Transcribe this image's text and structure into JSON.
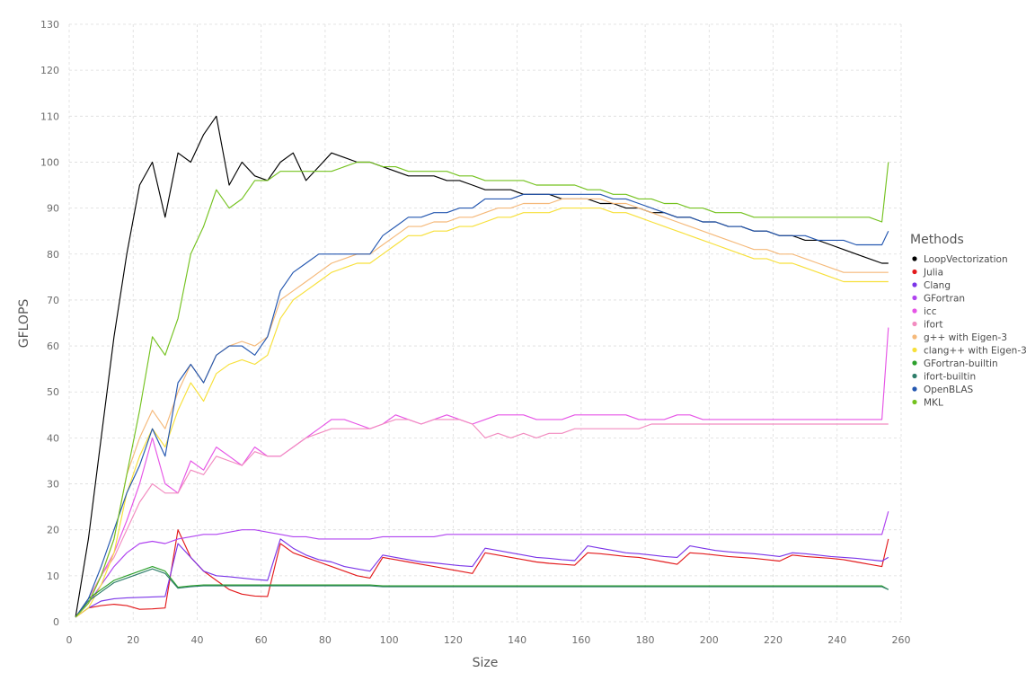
{
  "chart_data": {
    "type": "line",
    "title": "",
    "xlabel": "Size",
    "ylabel": "GFLOPS",
    "xlim": [
      0,
      260
    ],
    "ylim": [
      0,
      130
    ],
    "x_ticks": [
      0,
      20,
      40,
      60,
      80,
      100,
      120,
      140,
      160,
      180,
      200,
      220,
      240,
      260
    ],
    "y_ticks": [
      0,
      10,
      20,
      30,
      40,
      50,
      60,
      70,
      80,
      90,
      100,
      110,
      120,
      130
    ],
    "grid": true,
    "legend_title": "Methods",
    "legend_position": "right",
    "x": [
      2,
      6,
      10,
      14,
      18,
      22,
      26,
      30,
      34,
      38,
      42,
      46,
      50,
      54,
      58,
      62,
      66,
      70,
      74,
      78,
      82,
      86,
      90,
      94,
      98,
      102,
      106,
      110,
      114,
      118,
      122,
      126,
      130,
      134,
      138,
      142,
      146,
      150,
      154,
      158,
      162,
      166,
      170,
      174,
      178,
      182,
      186,
      190,
      194,
      198,
      202,
      206,
      210,
      214,
      218,
      222,
      226,
      230,
      234,
      238,
      242,
      246,
      250,
      254,
      256
    ],
    "series": [
      {
        "name": "LoopVectorization",
        "color": "#000000",
        "values": [
          1,
          18,
          40,
          62,
          80,
          95,
          100,
          88,
          102,
          100,
          106,
          110,
          95,
          100,
          97,
          96,
          100,
          102,
          96,
          99,
          102,
          101,
          100,
          100,
          99,
          98,
          97,
          97,
          97,
          96,
          96,
          95,
          94,
          94,
          94,
          93,
          93,
          93,
          92,
          92,
          92,
          91,
          91,
          90,
          90,
          89,
          89,
          88,
          88,
          87,
          87,
          86,
          86,
          85,
          85,
          84,
          84,
          83,
          83,
          82,
          81,
          80,
          79,
          78,
          78
        ]
      },
      {
        "name": "Julia",
        "color": "#e31a1c",
        "values": [
          1,
          3,
          3.5,
          3.8,
          3.5,
          2.7,
          2.8,
          3,
          20,
          14,
          11,
          9,
          7,
          6,
          5.6,
          5.5,
          17,
          15,
          14,
          13,
          12,
          11,
          10,
          9.5,
          14,
          13.5,
          13,
          12.5,
          12,
          11.5,
          11,
          10.5,
          15,
          14.5,
          14,
          13.5,
          13,
          12.7,
          12.5,
          12.3,
          15,
          14.8,
          14.5,
          14.2,
          14,
          13.5,
          13,
          12.5,
          15,
          14.8,
          14.5,
          14.2,
          14,
          13.8,
          13.5,
          13.2,
          14.5,
          14.2,
          14,
          13.8,
          13.5,
          13,
          12.5,
          12,
          18
        ]
      },
      {
        "name": "Clang",
        "color": "#7b35e8",
        "values": [
          1,
          3,
          4.5,
          5,
          5.2,
          5.3,
          5.4,
          5.5,
          17,
          14,
          11,
          10,
          9.8,
          9.5,
          9.2,
          9,
          18,
          16,
          14.5,
          13.5,
          13,
          12,
          11.5,
          11,
          14.5,
          14,
          13.5,
          13,
          12.8,
          12.5,
          12.2,
          12,
          16,
          15.5,
          15,
          14.5,
          14,
          13.8,
          13.5,
          13.3,
          16.5,
          16,
          15.5,
          15,
          14.8,
          14.5,
          14.2,
          14,
          16.5,
          16,
          15.5,
          15.2,
          15,
          14.8,
          14.5,
          14.2,
          15,
          14.8,
          14.5,
          14.2,
          14,
          13.8,
          13.5,
          13.2,
          14
        ]
      },
      {
        "name": "GFortran",
        "color": "#b044f0",
        "values": [
          1,
          4,
          8,
          12,
          15,
          17,
          17.5,
          17,
          18,
          18.5,
          19,
          19,
          19.5,
          20,
          20,
          19.5,
          19,
          18.5,
          18.5,
          18,
          18,
          18,
          18,
          18,
          18.5,
          18.5,
          18.5,
          18.5,
          18.5,
          19,
          19,
          19,
          19,
          19,
          19,
          19,
          19,
          19,
          19,
          19,
          19,
          19,
          19,
          19,
          19,
          19,
          19,
          19,
          19,
          19,
          19,
          19,
          19,
          19,
          19,
          19,
          19,
          19,
          19,
          19,
          19,
          19,
          19,
          19,
          24
        ]
      },
      {
        "name": "icc",
        "color": "#e655e6",
        "values": [
          1,
          5,
          10,
          15,
          22,
          30,
          40,
          30,
          28,
          35,
          33,
          38,
          36,
          34,
          38,
          36,
          36,
          38,
          40,
          42,
          44,
          44,
          43,
          42,
          43,
          45,
          44,
          43,
          44,
          45,
          44,
          43,
          44,
          45,
          45,
          45,
          44,
          44,
          44,
          45,
          45,
          45,
          45,
          45,
          44,
          44,
          44,
          45,
          45,
          44,
          44,
          44,
          44,
          44,
          44,
          44,
          44,
          44,
          44,
          44,
          44,
          44,
          44,
          44,
          64
        ]
      },
      {
        "name": "ifort",
        "color": "#f28cc0",
        "values": [
          1,
          5,
          10,
          14,
          20,
          26,
          30,
          28,
          28,
          33,
          32,
          36,
          35,
          34,
          37,
          36,
          36,
          38,
          40,
          41,
          42,
          42,
          42,
          42,
          43,
          44,
          44,
          43,
          44,
          44,
          44,
          43,
          40,
          41,
          40,
          41,
          40,
          41,
          41,
          42,
          42,
          42,
          42,
          42,
          42,
          43,
          43,
          43,
          43,
          43,
          43,
          43,
          43,
          43,
          43,
          43,
          43,
          43,
          43,
          43,
          43,
          43,
          43,
          43,
          43
        ]
      },
      {
        "name": "g++ with Eigen-3",
        "color": "#f5b97a",
        "values": [
          1,
          4,
          10,
          18,
          32,
          40,
          46,
          42,
          50,
          56,
          52,
          58,
          60,
          61,
          60,
          62,
          70,
          72,
          74,
          76,
          78,
          79,
          80,
          80,
          82,
          84,
          86,
          86,
          87,
          87,
          88,
          88,
          89,
          90,
          90,
          91,
          91,
          91,
          92,
          92,
          92,
          92,
          91,
          91,
          90,
          89,
          88,
          87,
          86,
          85,
          84,
          83,
          82,
          81,
          81,
          80,
          80,
          79,
          78,
          77,
          76,
          76,
          76,
          76,
          76
        ]
      },
      {
        "name": "clang++ with Eigen-3",
        "color": "#f7e03a",
        "values": [
          1,
          3,
          8,
          15,
          28,
          36,
          42,
          38,
          46,
          52,
          48,
          54,
          56,
          57,
          56,
          58,
          66,
          70,
          72,
          74,
          76,
          77,
          78,
          78,
          80,
          82,
          84,
          84,
          85,
          85,
          86,
          86,
          87,
          88,
          88,
          89,
          89,
          89,
          90,
          90,
          90,
          90,
          89,
          89,
          88,
          87,
          86,
          85,
          84,
          83,
          82,
          81,
          80,
          79,
          79,
          78,
          78,
          77,
          76,
          75,
          74,
          74,
          74,
          74,
          74
        ]
      },
      {
        "name": "GFortran-builtin",
        "color": "#2ca02c",
        "values": [
          1,
          5,
          7,
          9,
          10,
          11,
          12,
          11,
          7.5,
          7.8,
          8,
          8,
          8,
          8,
          8,
          8,
          8,
          8,
          8,
          8,
          8,
          8,
          8,
          8,
          7.8,
          7.8,
          7.8,
          7.8,
          7.8,
          7.8,
          7.8,
          7.8,
          7.8,
          7.8,
          7.8,
          7.8,
          7.8,
          7.8,
          7.8,
          7.8,
          7.8,
          7.8,
          7.8,
          7.8,
          7.8,
          7.8,
          7.8,
          7.8,
          7.8,
          7.8,
          7.8,
          7.8,
          7.8,
          7.8,
          7.8,
          7.8,
          7.8,
          7.8,
          7.8,
          7.8,
          7.8,
          7.8,
          7.8,
          7.8,
          7
        ]
      },
      {
        "name": "ifort-builtin",
        "color": "#2e7d6a",
        "values": [
          1,
          4.5,
          6.5,
          8.5,
          9.5,
          10.5,
          11.5,
          10.5,
          7.3,
          7.6,
          7.8,
          7.8,
          7.8,
          7.8,
          7.8,
          7.8,
          7.8,
          7.8,
          7.8,
          7.8,
          7.8,
          7.8,
          7.8,
          7.8,
          7.6,
          7.6,
          7.6,
          7.6,
          7.6,
          7.6,
          7.6,
          7.6,
          7.6,
          7.6,
          7.6,
          7.6,
          7.6,
          7.6,
          7.6,
          7.6,
          7.6,
          7.6,
          7.6,
          7.6,
          7.6,
          7.6,
          7.6,
          7.6,
          7.6,
          7.6,
          7.6,
          7.6,
          7.6,
          7.6,
          7.6,
          7.6,
          7.6,
          7.6,
          7.6,
          7.6,
          7.6,
          7.6,
          7.6,
          7.6,
          7
        ]
      },
      {
        "name": "OpenBLAS",
        "color": "#2457b0",
        "values": [
          1,
          5,
          12,
          20,
          28,
          34,
          42,
          36,
          52,
          56,
          52,
          58,
          60,
          60,
          58,
          62,
          72,
          76,
          78,
          80,
          80,
          80,
          80,
          80,
          84,
          86,
          88,
          88,
          89,
          89,
          90,
          90,
          92,
          92,
          92,
          93,
          93,
          93,
          93,
          93,
          93,
          93,
          92,
          92,
          91,
          90,
          89,
          88,
          88,
          87,
          87,
          86,
          86,
          85,
          85,
          84,
          84,
          84,
          83,
          83,
          83,
          82,
          82,
          82,
          85
        ]
      },
      {
        "name": "MKL",
        "color": "#74c21f",
        "values": [
          1,
          4,
          10,
          18,
          32,
          46,
          62,
          58,
          66,
          80,
          86,
          94,
          90,
          92,
          96,
          96,
          98,
          98,
          98,
          98,
          98,
          99,
          100,
          100,
          99,
          99,
          98,
          98,
          98,
          98,
          97,
          97,
          96,
          96,
          96,
          96,
          95,
          95,
          95,
          95,
          94,
          94,
          93,
          93,
          92,
          92,
          91,
          91,
          90,
          90,
          89,
          89,
          89,
          88,
          88,
          88,
          88,
          88,
          88,
          88,
          88,
          88,
          88,
          87,
          100
        ]
      }
    ]
  }
}
